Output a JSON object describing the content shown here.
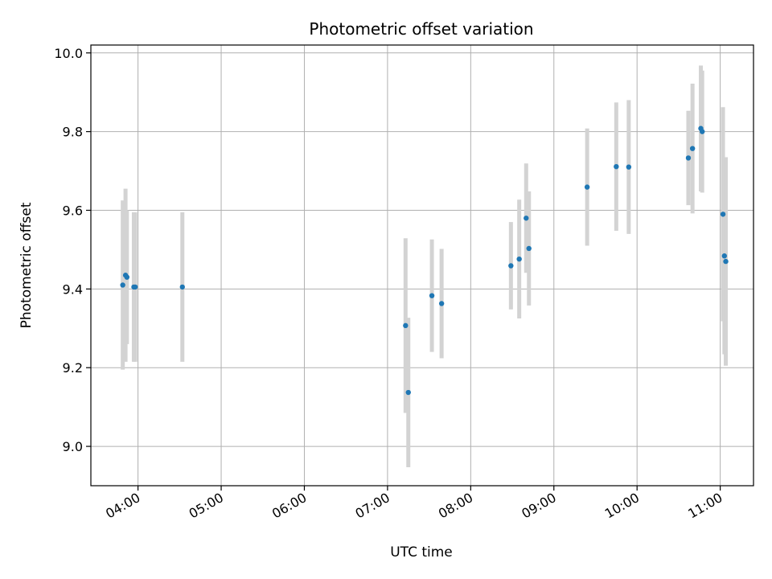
{
  "chart_data": {
    "type": "scatter",
    "title": "Photometric offset variation",
    "xlabel": "UTC time",
    "ylabel": "Photometric offset",
    "x_ticks": [
      "04:00",
      "05:00",
      "06:00",
      "07:00",
      "08:00",
      "09:00",
      "10:00",
      "11:00"
    ],
    "y_ticks": [
      "9.0",
      "9.2",
      "9.4",
      "9.6",
      "9.8",
      "10.0"
    ],
    "xlim": [
      "03:26",
      "11:24"
    ],
    "ylim": [
      8.9,
      10.02
    ],
    "grid": true,
    "point_color": "#1f77b4",
    "errorbar_color": "#d3d3d3",
    "points": [
      {
        "x": "03:49",
        "y": 9.41,
        "err": 0.215
      },
      {
        "x": "03:51",
        "y": 9.435,
        "err": 0.22
      },
      {
        "x": "03:52",
        "y": 9.43,
        "err": 0.17
      },
      {
        "x": "03:57",
        "y": 9.405,
        "err": 0.19
      },
      {
        "x": "03:58",
        "y": 9.405,
        "err": 0.19
      },
      {
        "x": "04:32",
        "y": 9.405,
        "err": 0.19
      },
      {
        "x": "07:13",
        "y": 9.307,
        "err": 0.222
      },
      {
        "x": "07:15",
        "y": 9.137,
        "err": 0.19
      },
      {
        "x": "07:32",
        "y": 9.383,
        "err": 0.143
      },
      {
        "x": "07:39",
        "y": 9.363,
        "err": 0.139
      },
      {
        "x": "08:29",
        "y": 9.459,
        "err": 0.111
      },
      {
        "x": "08:35",
        "y": 9.476,
        "err": 0.151
      },
      {
        "x": "08:40",
        "y": 9.58,
        "err": 0.139
      },
      {
        "x": "08:42",
        "y": 9.503,
        "err": 0.145
      },
      {
        "x": "09:24",
        "y": 9.659,
        "err": 0.149
      },
      {
        "x": "09:45",
        "y": 9.711,
        "err": 0.163
      },
      {
        "x": "09:54",
        "y": 9.71,
        "err": 0.17
      },
      {
        "x": "10:37",
        "y": 9.733,
        "err": 0.12
      },
      {
        "x": "10:40",
        "y": 9.757,
        "err": 0.165
      },
      {
        "x": "10:46",
        "y": 9.808,
        "err": 0.16
      },
      {
        "x": "10:47",
        "y": 9.8,
        "err": 0.155
      },
      {
        "x": "11:02",
        "y": 9.59,
        "err": 0.272
      },
      {
        "x": "11:03",
        "y": 9.484,
        "err": 0.25
      },
      {
        "x": "11:04",
        "y": 9.47,
        "err": 0.265
      }
    ]
  }
}
